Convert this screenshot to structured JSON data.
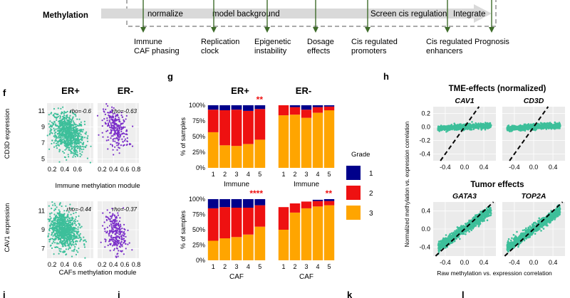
{
  "pipeline": {
    "label": "Methylation",
    "steps": [
      "normalize",
      "model background",
      "Screen cis regulation",
      "Integrate"
    ],
    "outputs": [
      [
        "Immune",
        "CAF phasing"
      ],
      [
        "Replication",
        "clock"
      ],
      [
        "Epigenetic",
        "instability"
      ],
      [
        "Dosage",
        "effects"
      ],
      [
        "Cis regulated",
        "promoters"
      ],
      [
        "Cis regulated",
        "enhancers"
      ],
      [
        "Prognosis"
      ]
    ],
    "colors": {
      "arrow": "#d9d9d9",
      "marker": "#3e6b2a"
    }
  },
  "panel_labels": {
    "f": "f",
    "g": "g",
    "h": "h",
    "i": "i",
    "j": "j",
    "k": "k",
    "l": "l"
  },
  "panel_f": {
    "col_titles": [
      "ER+",
      "ER-"
    ],
    "rows": [
      {
        "ylabel": "CD3D expression",
        "xlabel": "Immune methylation module",
        "yticks": [
          "11",
          "9",
          "7",
          "5"
        ],
        "xticks": [
          "0.2",
          "0.4",
          "0.6",
          "0.8"
        ],
        "rho": [
          "rho=-0.6",
          "rho=-0.63"
        ]
      },
      {
        "ylabel": "CAV1 expression",
        "xlabel": "CAFs methylation module",
        "yticks": [
          "11",
          "9",
          "7"
        ],
        "xticks": [
          "0.2",
          "0.4",
          "0.6",
          "0.8"
        ],
        "rho": [
          "rho=-0.44",
          "rho=-0.37"
        ]
      }
    ],
    "colors": {
      "er_pos": "#3dbf9a",
      "er_neg": "#7b2fc9"
    }
  },
  "chart_data": [
    {
      "type": "bar",
      "title": "ER+",
      "xlabel": "Immune",
      "ylabel": "% of samples",
      "categories": [
        "1",
        "2",
        "3",
        "4",
        "5"
      ],
      "ylim": [
        0,
        100
      ],
      "stacked": true,
      "yticks": [
        "100%",
        "75%",
        "50%",
        "25%",
        "0%"
      ],
      "significance": "**",
      "series": [
        {
          "name": "3",
          "values": [
            57,
            36,
            35,
            38,
            45
          ]
        },
        {
          "name": "2",
          "values": [
            36,
            56,
            58,
            53,
            49
          ]
        },
        {
          "name": "1",
          "values": [
            7,
            8,
            7,
            9,
            6
          ]
        }
      ]
    },
    {
      "type": "bar",
      "title": "ER-",
      "xlabel": "Immune",
      "ylabel": "",
      "categories": [
        "1",
        "2",
        "3",
        "4",
        "5"
      ],
      "ylim": [
        0,
        100
      ],
      "stacked": true,
      "significance": "",
      "series": [
        {
          "name": "3",
          "values": [
            84,
            85,
            80,
            88,
            92
          ]
        },
        {
          "name": "2",
          "values": [
            16,
            12,
            13,
            9,
            6
          ]
        },
        {
          "name": "1",
          "values": [
            0,
            3,
            7,
            3,
            2
          ]
        }
      ]
    },
    {
      "type": "bar",
      "title": "",
      "xlabel": "CAF",
      "ylabel": "% of samples",
      "categories": [
        "1",
        "2",
        "3",
        "4",
        "5"
      ],
      "ylim": [
        0,
        100
      ],
      "stacked": true,
      "yticks": [
        "100%",
        "75%",
        "50%",
        "25%",
        "0%"
      ],
      "significance": "****",
      "series": [
        {
          "name": "3",
          "values": [
            32,
            36,
            38,
            42,
            55
          ]
        },
        {
          "name": "2",
          "values": [
            53,
            51,
            48,
            44,
            35
          ]
        },
        {
          "name": "1",
          "values": [
            15,
            13,
            14,
            14,
            10
          ]
        }
      ]
    },
    {
      "type": "bar",
      "title": "",
      "xlabel": "CAF",
      "ylabel": "",
      "categories": [
        "1",
        "2",
        "3",
        "4",
        "5"
      ],
      "ylim": [
        0,
        100
      ],
      "stacked": true,
      "significance": "**",
      "series": [
        {
          "name": "3",
          "values": [
            50,
            78,
            85,
            88,
            90
          ]
        },
        {
          "name": "2",
          "values": [
            37,
            15,
            11,
            9,
            7
          ]
        },
        {
          "name": "1",
          "values": [
            0,
            0,
            0,
            2,
            3
          ]
        }
      ]
    }
  ],
  "panel_g_legend": {
    "title": "Grade",
    "items": [
      {
        "label": "1",
        "color": "#00008b"
      },
      {
        "label": "2",
        "color": "#ee1111"
      },
      {
        "label": "3",
        "color": "#ffa500"
      }
    ]
  },
  "panel_h": {
    "title_top": "TME-effects (normalized)",
    "title_bottom": "Tumor effects",
    "subplots": [
      "CAV1",
      "CD3D",
      "GATA3",
      "TOP2A"
    ],
    "ylabel": "Normalized methylation vs. expression correlation",
    "xlabel": "Raw methylation vs. expression correlation",
    "yticks": [
      "0.2",
      "0.0",
      "-0.2",
      "-0.4"
    ],
    "yticks_bottom": [
      "0.4",
      "0.0",
      "-0.4"
    ],
    "xticks": [
      "-0.4",
      "0.0",
      "0.4"
    ],
    "color": "#3dbf9a"
  }
}
